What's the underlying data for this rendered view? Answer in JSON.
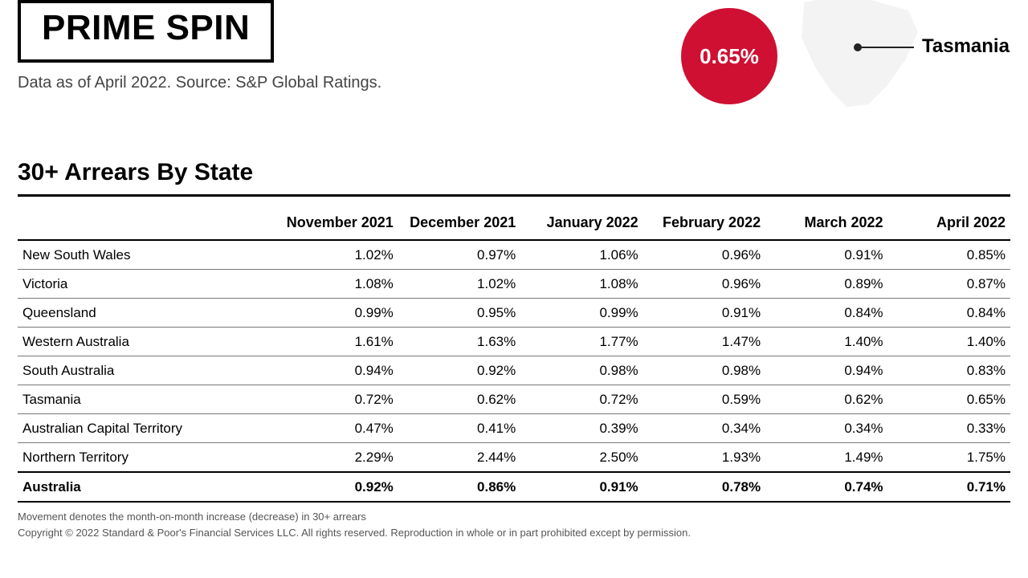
{
  "header": {
    "title": "PRIME SPIN",
    "source_line": "Data as of April 2022. Source: S&P Global Ratings."
  },
  "callout": {
    "bubble_value": "0.65%",
    "bubble_color": "#cf1032",
    "map_fill": "#d3d3d3",
    "label": "Tasmania",
    "label_fontsize": 24
  },
  "table": {
    "title": "30+ Arrears By State",
    "title_fontsize": 30,
    "columns": [
      "",
      "November 2021",
      "December 2021",
      "January 2022",
      "February 2022",
      "March 2022",
      "April 2022"
    ],
    "header_fontsize": 18,
    "cell_fontsize": 17,
    "border_color": "#000000",
    "row_border_color": "#777777",
    "rows": [
      {
        "state": "New South Wales",
        "values": [
          "1.02%",
          "0.97%",
          "1.06%",
          "0.96%",
          "0.91%",
          "0.85%"
        ]
      },
      {
        "state": "Victoria",
        "values": [
          "1.08%",
          "1.02%",
          "1.08%",
          "0.96%",
          "0.89%",
          "0.87%"
        ]
      },
      {
        "state": "Queensland",
        "values": [
          "0.99%",
          "0.95%",
          "0.99%",
          "0.91%",
          "0.84%",
          "0.84%"
        ]
      },
      {
        "state": "Western Australia",
        "values": [
          "1.61%",
          "1.63%",
          "1.77%",
          "1.47%",
          "1.40%",
          "1.40%"
        ]
      },
      {
        "state": "South Australia",
        "values": [
          "0.94%",
          "0.92%",
          "0.98%",
          "0.98%",
          "0.94%",
          "0.83%"
        ]
      },
      {
        "state": "Tasmania",
        "values": [
          "0.72%",
          "0.62%",
          "0.72%",
          "0.59%",
          "0.62%",
          "0.65%"
        ]
      },
      {
        "state": "Australian Capital Territory",
        "values": [
          "0.47%",
          "0.41%",
          "0.39%",
          "0.34%",
          "0.34%",
          "0.33%"
        ]
      },
      {
        "state": "Northern Territory",
        "values": [
          "2.29%",
          "2.44%",
          "2.50%",
          "1.93%",
          "1.49%",
          "1.75%"
        ]
      }
    ],
    "total_row": {
      "state": "Australia",
      "values": [
        "0.92%",
        "0.86%",
        "0.91%",
        "0.78%",
        "0.74%",
        "0.71%"
      ]
    }
  },
  "footnotes": {
    "line1": "Movement denotes the month-on-month increase (decrease) in 30+ arrears",
    "line2": "Copyright © 2022 Standard & Poor's Financial Services LLC. All rights reserved. Reproduction in whole or in part prohibited except by permission."
  },
  "background_color": "#ffffff"
}
